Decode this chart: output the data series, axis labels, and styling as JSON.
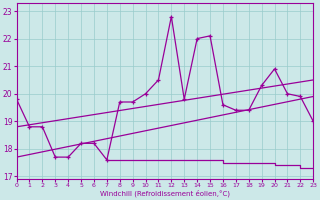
{
  "x_hours": [
    0,
    1,
    2,
    3,
    4,
    5,
    6,
    7,
    8,
    9,
    10,
    11,
    12,
    13,
    14,
    15,
    16,
    17,
    18,
    19,
    20,
    21,
    22,
    23
  ],
  "line_main_y": [
    19.8,
    18.8,
    18.8,
    17.7,
    17.7,
    18.2,
    18.2,
    17.6,
    19.7,
    19.7,
    20.0,
    20.5,
    22.8,
    19.8,
    22.0,
    22.1,
    19.6,
    19.4,
    19.4,
    20.3,
    20.9,
    20.0,
    19.9,
    19.0
  ],
  "line_flat_x": [
    7,
    8,
    9,
    10,
    11,
    12,
    13,
    14,
    15,
    16,
    17,
    18,
    19,
    20,
    21,
    22,
    23
  ],
  "line_flat_y": [
    17.6,
    17.6,
    17.6,
    17.6,
    17.6,
    17.6,
    17.6,
    17.6,
    17.6,
    17.5,
    17.5,
    17.5,
    17.5,
    17.4,
    17.4,
    17.3,
    17.3
  ],
  "trend1_x": [
    0,
    23
  ],
  "trend1_y": [
    18.8,
    20.5
  ],
  "trend2_x": [
    0,
    23
  ],
  "trend2_y": [
    17.7,
    19.9
  ],
  "bg_color": "#cce8e8",
  "line_color": "#990099",
  "grid_color": "#99cccc",
  "xlabel": "Windchill (Refroidissement éolien,°C)",
  "ylabel_ticks": [
    17,
    18,
    19,
    20,
    21,
    22,
    23
  ],
  "xlim": [
    0,
    23
  ],
  "ylim": [
    16.9,
    23.3
  ],
  "xticks": [
    0,
    1,
    2,
    3,
    4,
    5,
    6,
    7,
    8,
    9,
    10,
    11,
    12,
    13,
    14,
    15,
    16,
    17,
    18,
    19,
    20,
    21,
    22,
    23
  ]
}
